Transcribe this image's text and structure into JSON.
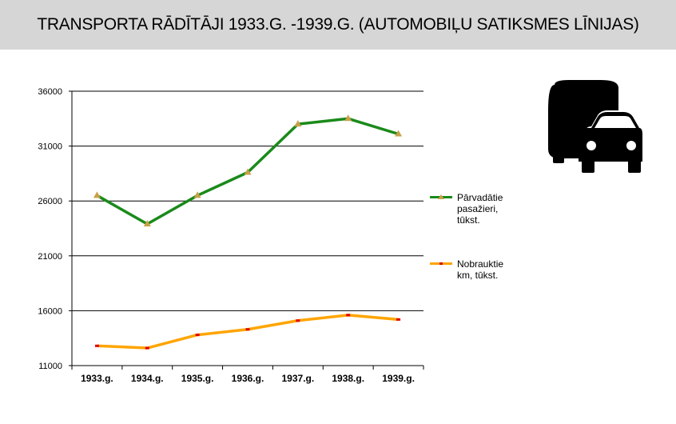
{
  "title": "TRANSPORTA RĀDĪTĀJI 1933.G. -1939.G. (AUTOMOBIĻU SATIKSMES LĪNIJAS)",
  "icon": "bus-and-car-icon",
  "colors": {
    "title_bg": "#d6d6d6",
    "passengers": "#1a8a1a",
    "passengers_marker": "#c9a04a",
    "km": "#ffa500",
    "km_marker": "#e00000"
  },
  "chart_data": {
    "type": "line",
    "categories": [
      "1933.g.",
      "1934.g.",
      "1935.g.",
      "1936.g.",
      "1937.g.",
      "1938.g.",
      "1939.g."
    ],
    "series": [
      {
        "name": "Pārvadātie pasažieri, tūkst.",
        "values": [
          26500,
          23900,
          26500,
          28600,
          33000,
          33500,
          32100
        ]
      },
      {
        "name": "Nobrauktie km, tūkst.",
        "values": [
          12800,
          12600,
          13800,
          14300,
          15100,
          15600,
          15200
        ]
      }
    ],
    "yticks": [
      "36000",
      "31000",
      "26000",
      "21000",
      "16000",
      "11000"
    ],
    "ylim": [
      11000,
      36000
    ],
    "grid": true,
    "legend": "right"
  }
}
